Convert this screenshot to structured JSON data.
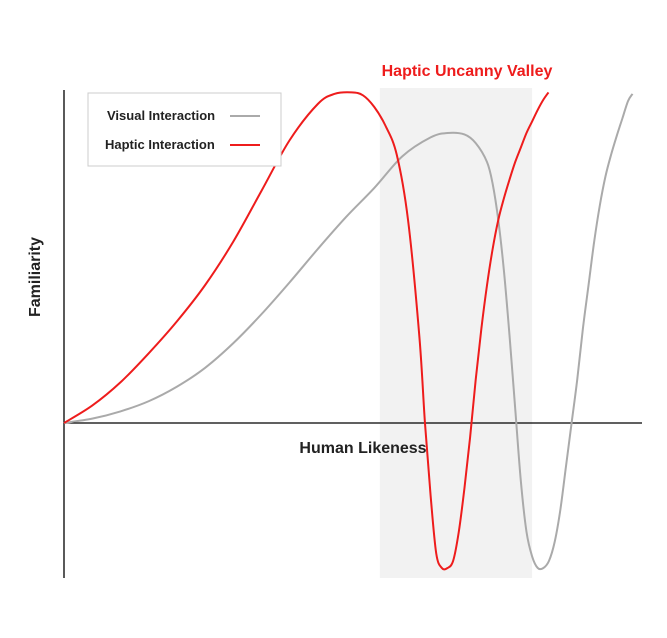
{
  "chart_data": {
    "type": "line",
    "title": "Haptic Uncanny Valley",
    "xlabel": "Human Likeness",
    "ylabel": "Familiarity",
    "legend_position": "top-left",
    "grid": false,
    "highlight_region": {
      "label": "Haptic Uncanny Valley",
      "x_range": [
        56,
        83
      ],
      "color": "#f2f2f2"
    },
    "xlim": [
      0,
      100
    ],
    "ylim": [
      -100,
      230
    ],
    "series": [
      {
        "name": "Visual Interaction",
        "color": "#aaaaaa",
        "x": [
          0,
          5,
          10,
          15,
          20,
          25,
          30,
          35,
          40,
          45,
          50,
          55,
          60,
          65,
          68,
          71,
          73,
          75,
          76,
          77,
          78,
          79,
          80,
          81,
          82,
          83,
          84,
          85,
          86,
          87,
          88,
          89,
          90,
          91,
          92,
          93,
          94,
          95,
          96,
          97,
          98,
          99,
          100,
          100.8
        ],
        "y": [
          0,
          3,
          8,
          15,
          25,
          38,
          55,
          75,
          97,
          120,
          142,
          162,
          184,
          197,
          200,
          199,
          193,
          180,
          165,
          140,
          105,
          60,
          10,
          -40,
          -75,
          -92,
          -100,
          -100,
          -95,
          -82,
          -60,
          -30,
          0,
          30,
          65,
          95,
          125,
          150,
          170,
          185,
          198,
          210,
          222,
          227
        ]
      },
      {
        "name": "Haptic Interaction",
        "color": "#ee1c1c",
        "x": [
          0,
          5,
          10,
          15,
          20,
          25,
          30,
          35,
          40,
          45,
          48,
          51,
          53,
          55,
          57,
          59,
          61,
          63,
          64,
          65,
          66,
          67,
          68,
          69,
          70,
          71,
          72,
          73,
          74,
          75,
          76,
          77,
          78,
          79,
          80,
          81,
          82,
          83,
          84,
          85,
          85.9
        ],
        "y": [
          0,
          12,
          28,
          48,
          70,
          95,
          125,
          160,
          195,
          220,
          227,
          228,
          226,
          218,
          205,
          185,
          140,
          60,
          0,
          -50,
          -90,
          -100,
          -100,
          -95,
          -75,
          -45,
          -10,
          30,
          65,
          95,
          120,
          140,
          155,
          168,
          180,
          190,
          200,
          208,
          216,
          223,
          228
        ]
      }
    ]
  }
}
